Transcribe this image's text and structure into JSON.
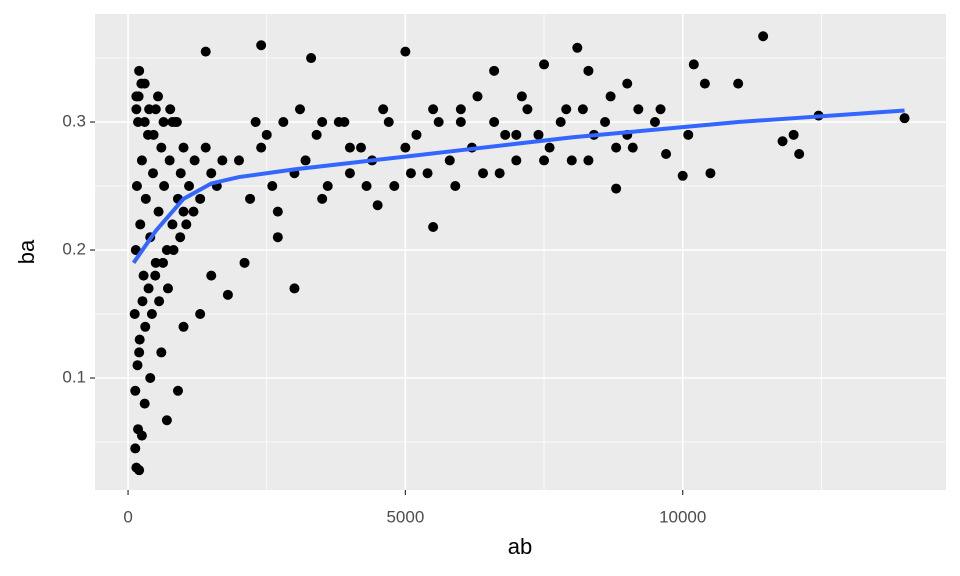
{
  "chart_data": {
    "type": "scatter",
    "x_label": "ab",
    "y_label": "ba",
    "xlim": [
      -596,
      14747
    ],
    "ylim": [
      0.0125,
      0.3844
    ],
    "xticks": [
      0,
      5000,
      10000
    ],
    "yticks": [
      0.1,
      0.2,
      0.3
    ],
    "grid": true,
    "points": {
      "color": "#000000",
      "x": [
        150,
        200,
        130,
        180,
        250,
        700,
        900,
        300,
        400,
        600,
        1000,
        1300,
        1500,
        1800,
        2100,
        3000,
        2700,
        1400,
        2400,
        3300,
        5000,
        8100,
        11450,
        14000,
        12450,
        11800,
        12100,
        10500,
        10000,
        9700,
        8800,
        5500,
        4500,
        6600,
        7500,
        8300,
        9000,
        10200,
        10400,
        11000,
        12000,
        9500,
        6000,
        7000,
        4000,
        3500,
        2500,
        200,
        150,
        300,
        500,
        800,
        1000,
        2000,
        120,
        140,
        160,
        180,
        200,
        220,
        250,
        280,
        320,
        360,
        400,
        450,
        500,
        550,
        600,
        650,
        700,
        750,
        800,
        850,
        900,
        950,
        1000,
        1100,
        1200,
        1300,
        1400,
        1500,
        1600,
        1700,
        130,
        170,
        210,
        260,
        310,
        370,
        430,
        490,
        560,
        630,
        720,
        820,
        940,
        1050,
        1180,
        150,
        190,
        240,
        300,
        380,
        460,
        540,
        640,
        760,
        880,
        2200,
        2400,
        2600,
        2800,
        3000,
        3200,
        3400,
        3600,
        3800,
        4000,
        4200,
        4400,
        4600,
        4800,
        5000,
        5200,
        5400,
        5600,
        5800,
        6000,
        6200,
        6400,
        6600,
        6800,
        7000,
        7200,
        7400,
        7600,
        7800,
        8000,
        8200,
        8400,
        8600,
        8800,
        9000,
        9200,
        2300,
        2700,
        3100,
        3500,
        3900,
        4300,
        4700,
        5100,
        5500,
        5900,
        6300,
        6700,
        7100,
        7500,
        7900,
        8300,
        8700,
        9100,
        9600,
        10100
      ],
      "y": [
        0.03,
        0.028,
        0.045,
        0.06,
        0.055,
        0.067,
        0.09,
        0.08,
        0.1,
        0.12,
        0.14,
        0.15,
        0.18,
        0.165,
        0.19,
        0.17,
        0.21,
        0.355,
        0.36,
        0.35,
        0.355,
        0.358,
        0.367,
        0.303,
        0.305,
        0.285,
        0.275,
        0.26,
        0.258,
        0.275,
        0.248,
        0.218,
        0.235,
        0.34,
        0.345,
        0.34,
        0.33,
        0.345,
        0.33,
        0.33,
        0.29,
        0.3,
        0.3,
        0.29,
        0.28,
        0.3,
        0.29,
        0.34,
        0.32,
        0.33,
        0.31,
        0.3,
        0.28,
        0.27,
        0.15,
        0.2,
        0.25,
        0.3,
        0.12,
        0.22,
        0.27,
        0.18,
        0.24,
        0.29,
        0.21,
        0.26,
        0.19,
        0.23,
        0.28,
        0.25,
        0.2,
        0.27,
        0.22,
        0.3,
        0.24,
        0.26,
        0.23,
        0.25,
        0.27,
        0.24,
        0.28,
        0.26,
        0.25,
        0.27,
        0.09,
        0.11,
        0.13,
        0.16,
        0.14,
        0.17,
        0.15,
        0.18,
        0.16,
        0.19,
        0.17,
        0.2,
        0.21,
        0.22,
        0.23,
        0.31,
        0.32,
        0.33,
        0.3,
        0.31,
        0.29,
        0.32,
        0.3,
        0.31,
        0.3,
        0.24,
        0.28,
        0.25,
        0.3,
        0.26,
        0.27,
        0.29,
        0.25,
        0.3,
        0.26,
        0.28,
        0.27,
        0.31,
        0.25,
        0.28,
        0.29,
        0.26,
        0.3,
        0.27,
        0.31,
        0.28,
        0.26,
        0.3,
        0.29,
        0.27,
        0.31,
        0.29,
        0.28,
        0.3,
        0.27,
        0.31,
        0.29,
        0.3,
        0.28,
        0.29,
        0.31,
        0.3,
        0.23,
        0.31,
        0.24,
        0.3,
        0.25,
        0.3,
        0.26,
        0.31,
        0.25,
        0.32,
        0.26,
        0.32,
        0.27,
        0.31,
        0.27,
        0.32,
        0.28,
        0.31,
        0.29
      ]
    },
    "smooth": {
      "color": "#3366ff",
      "x": [
        100,
        500,
        1000,
        1500,
        2000,
        3000,
        4000,
        5000,
        6000,
        7000,
        8000,
        9000,
        10000,
        11000,
        12000,
        13000,
        14000
      ],
      "y": [
        0.19,
        0.215,
        0.24,
        0.252,
        0.257,
        0.263,
        0.268,
        0.273,
        0.278,
        0.283,
        0.288,
        0.292,
        0.296,
        0.3,
        0.303,
        0.306,
        0.309
      ]
    }
  }
}
